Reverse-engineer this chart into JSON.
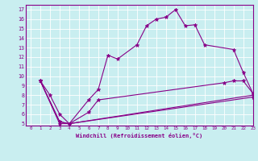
{
  "xlabel": "Windchill (Refroidissement éolien,°C)",
  "ylabel": "",
  "xlim": [
    -0.5,
    23
  ],
  "ylim": [
    4.8,
    17.5
  ],
  "xticks": [
    0,
    1,
    2,
    3,
    4,
    5,
    6,
    7,
    8,
    9,
    10,
    11,
    12,
    13,
    14,
    15,
    16,
    17,
    18,
    19,
    20,
    21,
    22,
    23
  ],
  "yticks": [
    5,
    6,
    7,
    8,
    9,
    10,
    11,
    12,
    13,
    14,
    15,
    16,
    17
  ],
  "bg_color": "#c9eef0",
  "line_color": "#880088",
  "grid_color": "#ffffff",
  "lines": [
    {
      "x": [
        1,
        2,
        3,
        4,
        6,
        7,
        8,
        9,
        11,
        12,
        13,
        14,
        15,
        16,
        17,
        18,
        21,
        22,
        23
      ],
      "y": [
        9.5,
        8.0,
        6.0,
        5.0,
        7.5,
        8.6,
        12.2,
        11.8,
        13.3,
        15.3,
        16.0,
        16.2,
        17.0,
        15.3,
        15.4,
        13.3,
        12.8,
        10.4,
        8.2
      ]
    },
    {
      "x": [
        1,
        3,
        4,
        6,
        7,
        20,
        21,
        22,
        23
      ],
      "y": [
        9.5,
        5.2,
        5.0,
        6.2,
        7.5,
        9.3,
        9.5,
        9.5,
        8.2
      ]
    },
    {
      "x": [
        1,
        3,
        4,
        23
      ],
      "y": [
        9.5,
        5.2,
        5.0,
        8.0
      ]
    },
    {
      "x": [
        1,
        3,
        4,
        23
      ],
      "y": [
        9.5,
        5.0,
        5.0,
        7.8
      ]
    }
  ]
}
